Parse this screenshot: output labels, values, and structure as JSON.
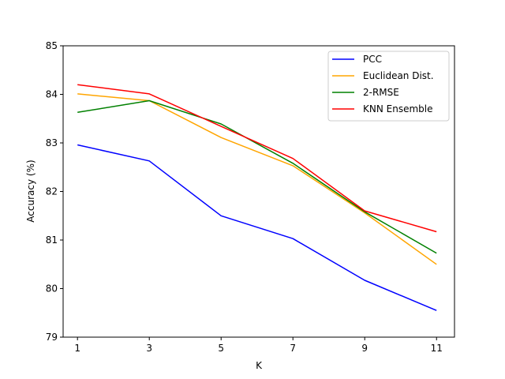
{
  "chart_data": {
    "type": "line",
    "xlabel": "K",
    "ylabel": "Accuracy (%)",
    "x": [
      1,
      3,
      5,
      7,
      9,
      11
    ],
    "xticks": [
      "1",
      "3",
      "5",
      "7",
      "9",
      "11"
    ],
    "yticks": [
      "79",
      "80",
      "81",
      "82",
      "83",
      "84",
      "85"
    ],
    "ylim": [
      79,
      85
    ],
    "xlim": [
      0.6,
      11.5
    ],
    "grid": false,
    "legend_position": "top-right",
    "series": [
      {
        "name": "PCC",
        "color": "#0000ff",
        "values": [
          82.96,
          82.63,
          81.5,
          81.03,
          80.17,
          79.55
        ]
      },
      {
        "name": "Euclidean Dist.",
        "color": "#ffa500",
        "values": [
          84.01,
          83.87,
          83.11,
          82.53,
          81.56,
          80.5
        ]
      },
      {
        "name": "2-RMSE",
        "color": "#008000",
        "values": [
          83.63,
          83.87,
          83.39,
          82.58,
          81.58,
          80.73
        ]
      },
      {
        "name": "KNN Ensemble",
        "color": "#ff0000",
        "values": [
          84.2,
          84.01,
          83.34,
          82.68,
          81.6,
          81.17
        ]
      }
    ]
  }
}
